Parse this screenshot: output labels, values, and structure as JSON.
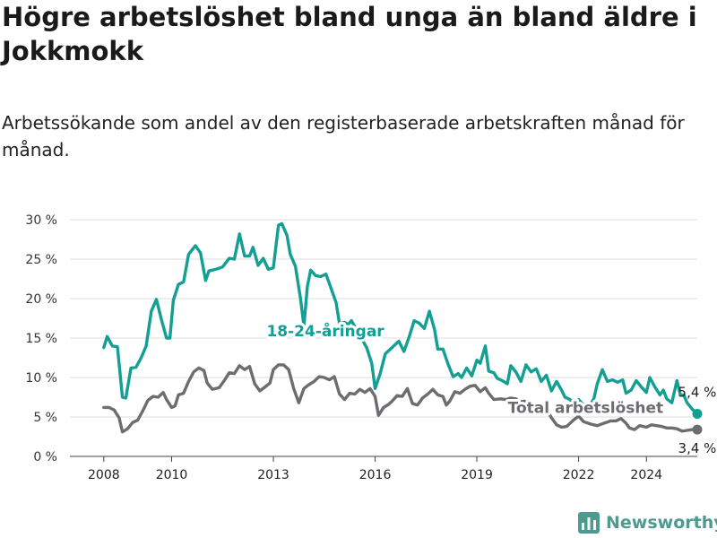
{
  "header": {
    "title": "Högre arbetslöshet bland unga än bland äldre i Jokkmokk",
    "subtitle": "Arbetssökande som andel av den registerbaserade arbetskraften månad för månad."
  },
  "brand": {
    "name": "Newsworthy",
    "color": "#4d9a8e"
  },
  "chart_data": {
    "type": "line",
    "title": "Högre arbetslöshet bland unga än bland äldre i Jokkmokk",
    "subtitle": "Arbetssökande som andel av den registerbaserade arbetskraften månad för månad.",
    "xlabel": "",
    "ylabel": "",
    "x_range": [
      2007.0,
      2025.5
    ],
    "ylim": [
      0,
      30
    ],
    "grid": true,
    "y_ticks": [
      0,
      5,
      10,
      15,
      20,
      25,
      30
    ],
    "y_tick_labels": [
      "0 %",
      "5 %",
      "10 %",
      "15 %",
      "20 %",
      "25 %",
      "30 %"
    ],
    "x_ticks": [
      2008,
      2010,
      2013,
      2016,
      2019,
      2022,
      2024
    ],
    "x_tick_labels": [
      "2008",
      "2010",
      "2013",
      "2016",
      "2019",
      "2022",
      "2024"
    ],
    "series": [
      {
        "name": "18-24-åringar",
        "color": "#139f93",
        "label_at": [
          2012.8,
          15.2
        ],
        "end_label": "5,4 %",
        "points": [
          [
            2008.0,
            13.8
          ],
          [
            2008.1,
            15.2
          ],
          [
            2008.25,
            14.0
          ],
          [
            2008.4,
            13.9
          ],
          [
            2008.55,
            7.5
          ],
          [
            2008.65,
            7.4
          ],
          [
            2008.8,
            11.2
          ],
          [
            2008.95,
            11.3
          ],
          [
            2009.1,
            12.5
          ],
          [
            2009.25,
            14.0
          ],
          [
            2009.4,
            18.4
          ],
          [
            2009.55,
            19.9
          ],
          [
            2009.7,
            17.3
          ],
          [
            2009.85,
            15.0
          ],
          [
            2009.95,
            15.0
          ],
          [
            2010.05,
            19.8
          ],
          [
            2010.2,
            21.8
          ],
          [
            2010.35,
            22.1
          ],
          [
            2010.5,
            25.6
          ],
          [
            2010.7,
            26.7
          ],
          [
            2010.85,
            25.8
          ],
          [
            2011.0,
            22.3
          ],
          [
            2011.1,
            23.5
          ],
          [
            2011.3,
            23.7
          ],
          [
            2011.5,
            24.0
          ],
          [
            2011.7,
            25.1
          ],
          [
            2011.85,
            25.0
          ],
          [
            2012.0,
            28.2
          ],
          [
            2012.15,
            25.4
          ],
          [
            2012.3,
            25.4
          ],
          [
            2012.4,
            26.5
          ],
          [
            2012.55,
            24.2
          ],
          [
            2012.7,
            25.1
          ],
          [
            2012.85,
            23.7
          ],
          [
            2013.0,
            23.9
          ],
          [
            2013.15,
            29.3
          ],
          [
            2013.25,
            29.5
          ],
          [
            2013.4,
            28.0
          ],
          [
            2013.5,
            25.6
          ],
          [
            2013.65,
            24.1
          ],
          [
            2013.8,
            20.0
          ],
          [
            2013.9,
            16.5
          ],
          [
            2014.0,
            21.5
          ],
          [
            2014.1,
            23.6
          ],
          [
            2014.25,
            22.9
          ],
          [
            2014.4,
            22.8
          ],
          [
            2014.55,
            23.1
          ],
          [
            2014.7,
            21.3
          ],
          [
            2014.85,
            19.5
          ],
          [
            2014.95,
            16.8
          ],
          [
            2015.1,
            17.0
          ],
          [
            2015.2,
            16.7
          ],
          [
            2015.3,
            17.2
          ],
          [
            2015.75,
            13.8
          ],
          [
            2015.9,
            11.8
          ],
          [
            2016.0,
            8.6
          ],
          [
            2016.15,
            10.5
          ],
          [
            2016.3,
            13.0
          ],
          [
            2016.7,
            14.6
          ],
          [
            2016.85,
            13.3
          ],
          [
            2017.0,
            15.1
          ],
          [
            2017.15,
            17.2
          ],
          [
            2017.3,
            16.9
          ],
          [
            2017.45,
            16.2
          ],
          [
            2017.6,
            18.4
          ],
          [
            2017.75,
            16.1
          ],
          [
            2017.85,
            13.6
          ],
          [
            2018.0,
            13.6
          ],
          [
            2018.15,
            11.7
          ],
          [
            2018.3,
            10.1
          ],
          [
            2018.45,
            10.5
          ],
          [
            2018.55,
            10.0
          ],
          [
            2018.7,
            11.2
          ],
          [
            2018.85,
            10.2
          ],
          [
            2019.0,
            12.2
          ],
          [
            2019.1,
            11.8
          ],
          [
            2019.25,
            14.0
          ],
          [
            2019.35,
            10.8
          ],
          [
            2019.5,
            10.6
          ],
          [
            2019.6,
            9.9
          ],
          [
            2019.75,
            9.6
          ],
          [
            2019.9,
            9.2
          ],
          [
            2020.0,
            11.5
          ],
          [
            2020.15,
            10.7
          ],
          [
            2020.3,
            9.5
          ],
          [
            2020.45,
            11.6
          ],
          [
            2020.6,
            10.7
          ],
          [
            2020.75,
            11.1
          ],
          [
            2020.9,
            9.5
          ],
          [
            2021.05,
            10.3
          ],
          [
            2021.2,
            8.3
          ],
          [
            2021.35,
            9.5
          ],
          [
            2021.5,
            8.4
          ],
          [
            2021.6,
            7.5
          ],
          [
            2021.75,
            7.2
          ],
          [
            2021.9,
            6.3
          ],
          [
            2022.0,
            7.2
          ],
          [
            2022.15,
            6.5
          ],
          [
            2022.3,
            6.3
          ],
          [
            2022.45,
            7.3
          ],
          [
            2022.55,
            9.2
          ],
          [
            2022.7,
            11.0
          ],
          [
            2022.85,
            9.5
          ],
          [
            2023.0,
            9.7
          ],
          [
            2023.15,
            9.4
          ],
          [
            2023.3,
            9.7
          ],
          [
            2023.4,
            8.0
          ],
          [
            2023.55,
            8.4
          ],
          [
            2023.7,
            9.6
          ],
          [
            2023.85,
            8.8
          ],
          [
            2024.0,
            8.1
          ],
          [
            2024.1,
            10.0
          ],
          [
            2024.25,
            8.8
          ],
          [
            2024.4,
            7.8
          ],
          [
            2024.5,
            8.4
          ],
          [
            2024.6,
            7.3
          ],
          [
            2024.75,
            6.8
          ],
          [
            2024.9,
            9.6
          ],
          [
            2025.0,
            7.8
          ],
          [
            2025.1,
            7.8
          ],
          [
            2025.2,
            6.8
          ],
          [
            2025.35,
            6.0
          ],
          [
            2025.5,
            5.4
          ]
        ]
      },
      {
        "name": "Total arbetslöshet",
        "color": "#6d6d71",
        "label_at": [
          2024.5,
          5.5
        ],
        "end_label": "3,4 %",
        "points": [
          [
            2008.0,
            6.2
          ],
          [
            2008.15,
            6.2
          ],
          [
            2008.3,
            5.9
          ],
          [
            2008.45,
            4.9
          ],
          [
            2008.55,
            3.1
          ],
          [
            2008.7,
            3.5
          ],
          [
            2008.85,
            4.3
          ],
          [
            2009.0,
            4.6
          ],
          [
            2009.15,
            5.8
          ],
          [
            2009.3,
            7.1
          ],
          [
            2009.45,
            7.6
          ],
          [
            2009.6,
            7.5
          ],
          [
            2009.75,
            8.1
          ],
          [
            2009.85,
            7.2
          ],
          [
            2010.0,
            6.2
          ],
          [
            2010.1,
            6.4
          ],
          [
            2010.2,
            7.8
          ],
          [
            2010.35,
            8.0
          ],
          [
            2010.5,
            9.5
          ],
          [
            2010.65,
            10.7
          ],
          [
            2010.8,
            11.2
          ],
          [
            2010.95,
            10.9
          ],
          [
            2011.05,
            9.3
          ],
          [
            2011.2,
            8.5
          ],
          [
            2011.4,
            8.7
          ],
          [
            2011.55,
            9.6
          ],
          [
            2011.7,
            10.6
          ],
          [
            2011.85,
            10.5
          ],
          [
            2012.0,
            11.5
          ],
          [
            2012.15,
            11.0
          ],
          [
            2012.3,
            11.4
          ],
          [
            2012.45,
            9.2
          ],
          [
            2012.6,
            8.3
          ],
          [
            2012.75,
            8.8
          ],
          [
            2012.9,
            9.3
          ],
          [
            2013.0,
            11.0
          ],
          [
            2013.15,
            11.6
          ],
          [
            2013.3,
            11.6
          ],
          [
            2013.45,
            11.0
          ],
          [
            2013.6,
            8.6
          ],
          [
            2013.75,
            6.8
          ],
          [
            2013.9,
            8.6
          ],
          [
            2014.05,
            9.1
          ],
          [
            2014.2,
            9.5
          ],
          [
            2014.35,
            10.1
          ],
          [
            2014.5,
            10.0
          ],
          [
            2014.65,
            9.7
          ],
          [
            2014.8,
            10.1
          ],
          [
            2014.95,
            7.9
          ],
          [
            2015.1,
            7.2
          ],
          [
            2015.25,
            8.0
          ],
          [
            2015.4,
            7.9
          ],
          [
            2015.55,
            8.5
          ],
          [
            2015.7,
            8.1
          ],
          [
            2015.85,
            8.6
          ],
          [
            2016.0,
            7.6
          ],
          [
            2016.1,
            5.2
          ],
          [
            2016.25,
            6.2
          ],
          [
            2016.4,
            6.6
          ],
          [
            2016.5,
            7.0
          ],
          [
            2016.65,
            7.7
          ],
          [
            2016.8,
            7.6
          ],
          [
            2016.95,
            8.6
          ],
          [
            2017.1,
            6.7
          ],
          [
            2017.25,
            6.5
          ],
          [
            2017.4,
            7.4
          ],
          [
            2017.55,
            7.9
          ],
          [
            2017.7,
            8.5
          ],
          [
            2017.85,
            7.8
          ],
          [
            2018.0,
            7.6
          ],
          [
            2018.1,
            6.5
          ],
          [
            2018.2,
            7.0
          ],
          [
            2018.35,
            8.2
          ],
          [
            2018.5,
            8.0
          ],
          [
            2018.65,
            8.5
          ],
          [
            2018.8,
            8.9
          ],
          [
            2018.95,
            9.0
          ],
          [
            2019.1,
            8.2
          ],
          [
            2019.25,
            8.7
          ],
          [
            2019.35,
            8.0
          ],
          [
            2019.5,
            7.2
          ],
          [
            2019.7,
            7.3
          ],
          [
            2019.85,
            7.2
          ],
          [
            2020.0,
            7.4
          ],
          [
            2020.15,
            7.3
          ],
          [
            2020.25,
            6.9
          ],
          [
            2020.4,
            7.0
          ],
          [
            2020.5,
            6.8
          ],
          [
            2020.65,
            6.3
          ],
          [
            2020.8,
            5.5
          ],
          [
            2020.95,
            5.9
          ],
          [
            2021.05,
            6.0
          ],
          [
            2021.2,
            4.9
          ],
          [
            2021.35,
            4.0
          ],
          [
            2021.5,
            3.7
          ],
          [
            2021.65,
            3.8
          ],
          [
            2021.85,
            4.6
          ],
          [
            2022.0,
            5.1
          ],
          [
            2022.15,
            4.4
          ],
          [
            2022.35,
            4.1
          ],
          [
            2022.55,
            3.9
          ],
          [
            2022.75,
            4.2
          ],
          [
            2022.95,
            4.5
          ],
          [
            2023.1,
            4.5
          ],
          [
            2023.25,
            4.8
          ],
          [
            2023.4,
            4.2
          ],
          [
            2023.5,
            3.6
          ],
          [
            2023.65,
            3.4
          ],
          [
            2023.8,
            3.9
          ],
          [
            2024.0,
            3.7
          ],
          [
            2024.15,
            4.0
          ],
          [
            2024.3,
            3.9
          ],
          [
            2024.45,
            3.8
          ],
          [
            2024.6,
            3.6
          ],
          [
            2024.75,
            3.6
          ],
          [
            2024.9,
            3.5
          ],
          [
            2025.05,
            3.2
          ],
          [
            2025.2,
            3.3
          ],
          [
            2025.35,
            3.4
          ],
          [
            2025.5,
            3.4
          ]
        ]
      }
    ]
  }
}
